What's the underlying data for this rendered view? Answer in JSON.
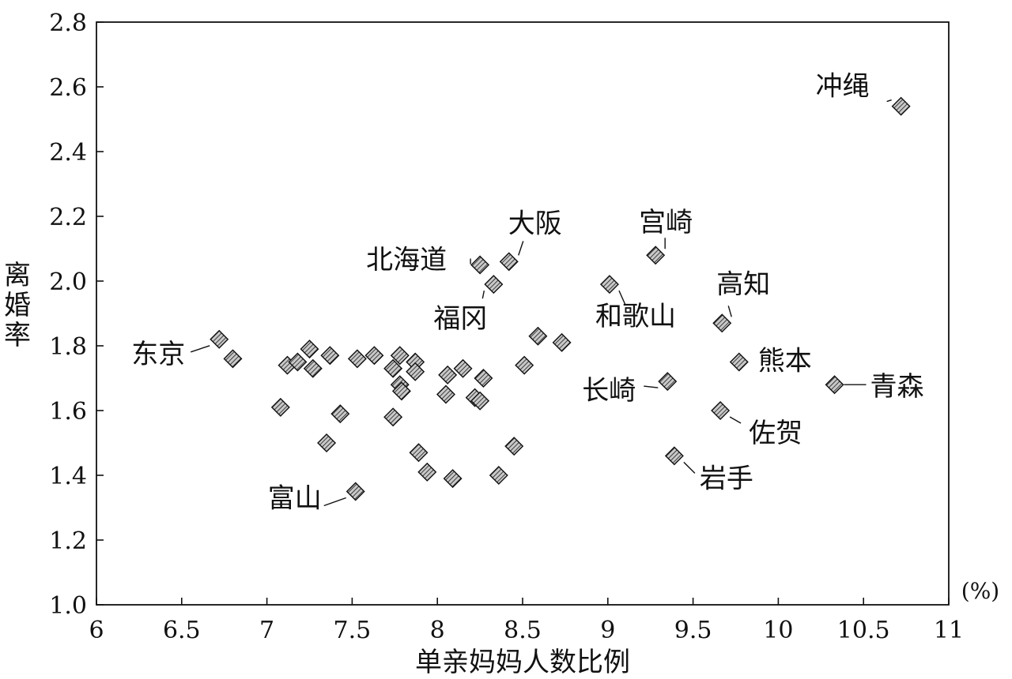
{
  "chart_data": {
    "type": "scatter",
    "xlabel": "单亲妈妈人数比例",
    "ylabel": "离婚率",
    "x_unit": "(%)",
    "xlim": [
      6,
      11
    ],
    "ylim": [
      1.0,
      2.8
    ],
    "x_ticks": [
      "6",
      "6.5",
      "7",
      "7.5",
      "8",
      "8.5",
      "9",
      "9.5",
      "10",
      "10.5",
      "11"
    ],
    "y_ticks": [
      "1.0",
      "1.2",
      "1.4",
      "1.6",
      "1.8",
      "2.0",
      "2.2",
      "2.4",
      "2.6",
      "2.8"
    ],
    "grid": false,
    "marker": "hatched diamond",
    "points": [
      {
        "x": 10.72,
        "y": 2.54,
        "label": "冲绳"
      },
      {
        "x": 8.25,
        "y": 2.05,
        "label": "北海道"
      },
      {
        "x": 8.42,
        "y": 2.06,
        "label": "大阪"
      },
      {
        "x": 8.33,
        "y": 1.99,
        "label": "福冈"
      },
      {
        "x": 9.28,
        "y": 2.08,
        "label": "宫崎"
      },
      {
        "x": 9.01,
        "y": 1.99,
        "label": "和歌山"
      },
      {
        "x": 9.67,
        "y": 1.87,
        "label": "高知"
      },
      {
        "x": 6.72,
        "y": 1.82,
        "label": "东京"
      },
      {
        "x": 9.77,
        "y": 1.75,
        "label": "熊本"
      },
      {
        "x": 10.33,
        "y": 1.68,
        "label": "青森"
      },
      {
        "x": 9.35,
        "y": 1.69,
        "label": "长崎"
      },
      {
        "x": 9.66,
        "y": 1.6,
        "label": "佐贺"
      },
      {
        "x": 9.39,
        "y": 1.46,
        "label": "岩手"
      },
      {
        "x": 7.52,
        "y": 1.35,
        "label": "富山"
      },
      {
        "x": 6.8,
        "y": 1.76
      },
      {
        "x": 7.12,
        "y": 1.74
      },
      {
        "x": 7.18,
        "y": 1.75
      },
      {
        "x": 7.25,
        "y": 1.79
      },
      {
        "x": 7.27,
        "y": 1.73
      },
      {
        "x": 7.37,
        "y": 1.77
      },
      {
        "x": 7.53,
        "y": 1.76
      },
      {
        "x": 7.63,
        "y": 1.77
      },
      {
        "x": 7.78,
        "y": 1.77
      },
      {
        "x": 7.74,
        "y": 1.73
      },
      {
        "x": 7.87,
        "y": 1.75
      },
      {
        "x": 7.87,
        "y": 1.72
      },
      {
        "x": 7.78,
        "y": 1.68
      },
      {
        "x": 7.79,
        "y": 1.66
      },
      {
        "x": 7.08,
        "y": 1.61
      },
      {
        "x": 7.43,
        "y": 1.59
      },
      {
        "x": 7.35,
        "y": 1.5
      },
      {
        "x": 7.74,
        "y": 1.58
      },
      {
        "x": 7.89,
        "y": 1.47
      },
      {
        "x": 7.94,
        "y": 1.41
      },
      {
        "x": 8.09,
        "y": 1.39
      },
      {
        "x": 8.36,
        "y": 1.4
      },
      {
        "x": 8.45,
        "y": 1.49
      },
      {
        "x": 8.06,
        "y": 1.71
      },
      {
        "x": 8.15,
        "y": 1.73
      },
      {
        "x": 8.05,
        "y": 1.65
      },
      {
        "x": 8.22,
        "y": 1.64
      },
      {
        "x": 8.25,
        "y": 1.63
      },
      {
        "x": 8.27,
        "y": 1.7
      },
      {
        "x": 8.51,
        "y": 1.74
      },
      {
        "x": 8.59,
        "y": 1.83
      },
      {
        "x": 8.73,
        "y": 1.81
      }
    ]
  }
}
